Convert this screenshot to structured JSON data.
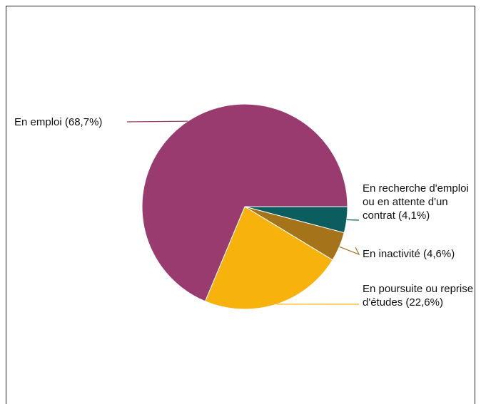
{
  "chart_data": {
    "type": "pie",
    "categories": [
      "En recherche d'emploi ou en attente d'un contrat",
      "En inactivité",
      "En poursuite ou reprise d'études",
      "En emploi"
    ],
    "values": [
      4.1,
      4.6,
      22.6,
      68.7
    ],
    "value_labels": [
      "(4,1%)",
      "(4,6%)",
      "(22,6%)",
      "(68,7%)"
    ],
    "colors": [
      "#0b5d5e",
      "#a4731a",
      "#f7b20c",
      "#993b6f"
    ]
  }
}
